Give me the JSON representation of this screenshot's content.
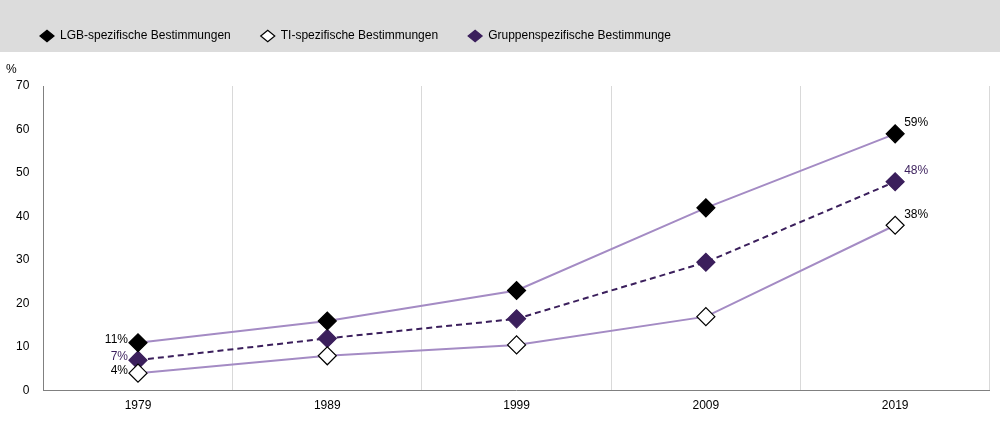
{
  "chart_data": {
    "type": "line",
    "ylabel": "%",
    "categories": [
      "1979",
      "1989",
      "1999",
      "2009",
      "2019"
    ],
    "series": [
      {
        "name": "LGB-spezifische Bestimmungen",
        "color": "#a48bc4",
        "marker": "diamond",
        "line_style": "solid",
        "values": [
          11,
          16,
          23,
          42,
          59
        ],
        "value_labels": [
          "11%",
          null,
          null,
          null,
          "59%"
        ]
      },
      {
        "name": "TI-spezifische Bestimmungen",
        "color": "#a48bc4",
        "marker": "open_diamond",
        "line_style": "solid",
        "values": [
          4,
          8,
          10.5,
          17,
          38
        ],
        "value_labels": [
          "4%",
          null,
          null,
          null,
          "38%"
        ]
      },
      {
        "name": "Gruppenspezifische Bestimmunge",
        "color": "#3b1f5c",
        "marker": "diamond",
        "line_style": "dashed",
        "values": [
          7,
          12,
          16.5,
          29.5,
          48
        ],
        "value_labels": [
          "7%",
          null,
          null,
          null,
          "48%"
        ]
      }
    ],
    "ylim": [
      0,
      70
    ],
    "yticks": [
      0,
      10,
      20,
      30,
      40,
      50,
      60,
      70
    ],
    "grid": true,
    "legend": "top",
    "data_labels": true
  }
}
